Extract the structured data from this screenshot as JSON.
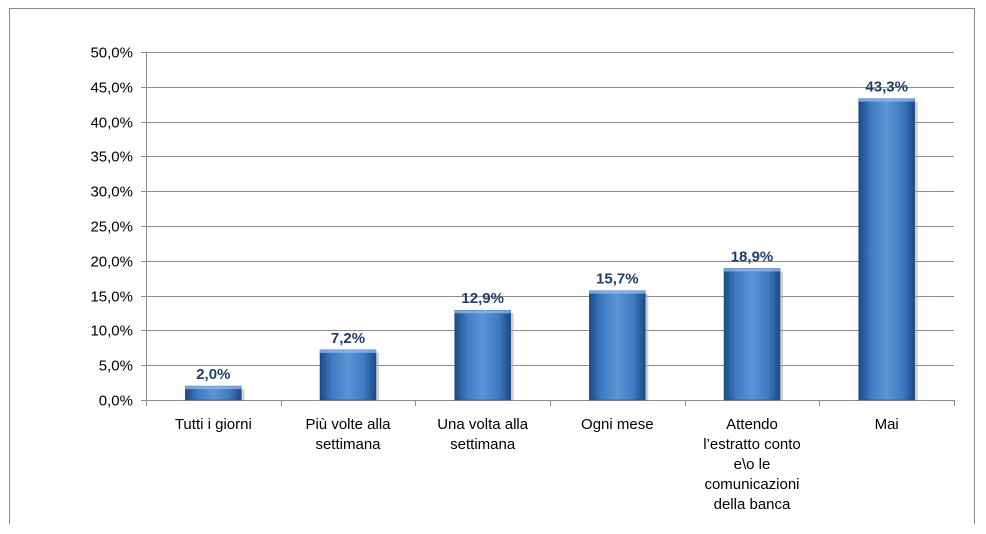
{
  "chart_data": {
    "type": "bar",
    "categories": [
      [
        "Tutti i giorni"
      ],
      [
        "Più volte alla",
        "settimana"
      ],
      [
        "Una volta alla",
        "settimana"
      ],
      [
        "Ogni mese"
      ],
      [
        "Attendo",
        "l’estratto conto",
        "e\\o le",
        "comunicazioni",
        "della banca"
      ],
      [
        "Mai"
      ]
    ],
    "values": [
      2.0,
      7.2,
      12.9,
      15.7,
      18.9,
      43.3
    ],
    "value_labels": [
      "2,0%",
      "7,2%",
      "12,9%",
      "15,7%",
      "18,9%",
      "43,3%"
    ],
    "yticks": [
      0,
      5,
      10,
      15,
      20,
      25,
      30,
      35,
      40,
      45,
      50
    ],
    "ytick_labels": [
      "0,0%",
      "5,0%",
      "10,0%",
      "15,0%",
      "20,0%",
      "25,0%",
      "30,0%",
      "35,0%",
      "40,0%",
      "45,0%",
      "50,0%"
    ],
    "ylim": [
      0,
      50
    ],
    "grid": true,
    "bar_color": "#3a72b8",
    "data_label_color": "#1f3f6a",
    "title": "",
    "xlabel": "",
    "ylabel": ""
  }
}
